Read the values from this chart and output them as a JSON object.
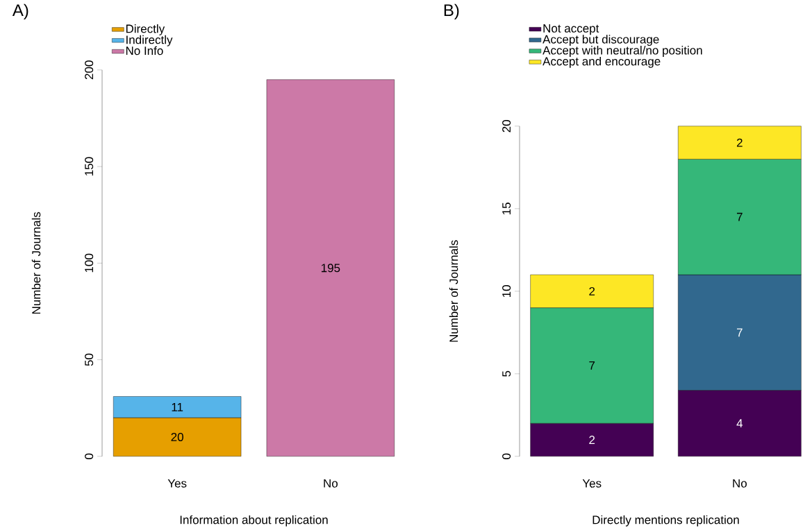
{
  "chart_data": [
    {
      "type": "bar",
      "title": "A)",
      "xlabel": "Information about replication",
      "ylabel": "Number of Journals",
      "categories": [
        "Yes",
        "No"
      ],
      "stacked": true,
      "data_labels": true,
      "legend": "top left",
      "ylim": [
        0,
        200
      ],
      "yticks": [
        0,
        50,
        100,
        150,
        200
      ],
      "series": [
        {
          "name": "Directly",
          "color": "#e69f00",
          "values": [
            20,
            null
          ]
        },
        {
          "name": "Indirectly",
          "color": "#56b4e9",
          "values": [
            11,
            null
          ]
        },
        {
          "name": "No Info",
          "color": "#cc79a7",
          "values": [
            null,
            195
          ]
        }
      ]
    },
    {
      "type": "bar",
      "title": "B)",
      "xlabel": "Directly mentions replication",
      "ylabel": "Number of Journals",
      "categories": [
        "Yes",
        "No"
      ],
      "stacked": true,
      "data_labels": true,
      "legend": "top left",
      "ylim": [
        0,
        20
      ],
      "yticks": [
        0,
        5,
        10,
        15,
        20
      ],
      "series": [
        {
          "name": "Not accept",
          "color": "#440154",
          "values": [
            2,
            4
          ]
        },
        {
          "name": "Accept but discourage",
          "color": "#31688e",
          "values": [
            null,
            7
          ]
        },
        {
          "name": "Accept with neutral/no position",
          "color": "#35b779",
          "values": [
            7,
            7
          ]
        },
        {
          "name": "Accept and encourage",
          "color": "#fde725",
          "values": [
            2,
            2
          ]
        }
      ]
    }
  ]
}
